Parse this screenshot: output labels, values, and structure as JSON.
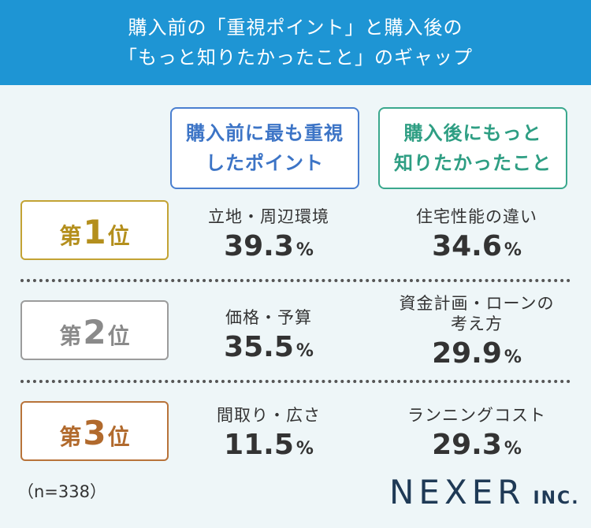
{
  "header": {
    "line1": "購入前の「重視ポイント」と購入後の",
    "line2": "「もっと知りたかったこと」のギャップ"
  },
  "columns": {
    "before": {
      "line1": "購入前に最も重視",
      "line2": "したポイント"
    },
    "after": {
      "line1": "購入後にもっと",
      "line2": "知りたかったこと"
    }
  },
  "ranks": [
    {
      "prefix": "第",
      "number": "1",
      "suffix": "位",
      "before": {
        "item": "立地・周辺環境",
        "value": "39.3",
        "unit": "%"
      },
      "after": {
        "item": "住宅性能の違い",
        "value": "34.6",
        "unit": "%"
      }
    },
    {
      "prefix": "第",
      "number": "2",
      "suffix": "位",
      "before": {
        "item": "価格・予算",
        "value": "35.5",
        "unit": "%"
      },
      "after": {
        "item1": "資金計画・ローンの",
        "item2": "考え方",
        "value": "29.9",
        "unit": "%"
      }
    },
    {
      "prefix": "第",
      "number": "3",
      "suffix": "位",
      "before": {
        "item": "間取り・広さ",
        "value": "11.5",
        "unit": "%"
      },
      "after": {
        "item": "ランニングコスト",
        "value": "29.3",
        "unit": "%"
      }
    }
  ],
  "footer": {
    "sample": "（n=338）",
    "logo_main": "NEXER",
    "logo_sub": "INC."
  },
  "colors": {
    "header_bg": "#1e95d4",
    "before_accent": "#3c74c6",
    "after_accent": "#2e9e83",
    "rank1": "#b48f1d",
    "rank2": "#8a8a8a",
    "rank3": "#b16a2d",
    "logo": "#1f3a56"
  }
}
